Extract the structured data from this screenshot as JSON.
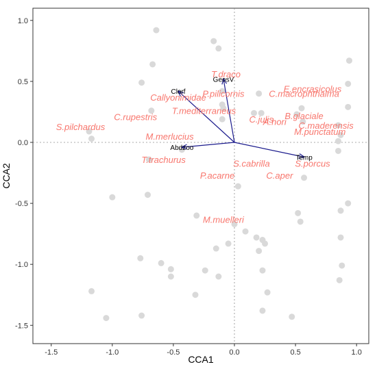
{
  "chart_data": {
    "type": "scatter",
    "title": "",
    "xlabel": "CCA1",
    "ylabel": "CCA2",
    "xlim": [
      -1.65,
      1.1
    ],
    "ylim": [
      -1.65,
      1.1
    ],
    "x_ticks": [
      -1.5,
      -1.0,
      -0.5,
      0.0,
      0.5,
      1.0
    ],
    "y_ticks": [
      -1.5,
      -1.0,
      -0.5,
      0.0,
      0.5,
      1.0
    ],
    "x_tick_labels": [
      "-1.5",
      "-1.0",
      "-0.5",
      "0.0",
      "0.5",
      "1.0"
    ],
    "y_tick_labels": [
      "-1.5",
      "-1.0",
      "-0.5",
      "0.0",
      "0.5",
      "1.0"
    ],
    "grid": false,
    "zero_lines": true,
    "colors": {
      "site_points": "#d9d9d9",
      "species_labels": "#f8766d",
      "vectors": "#1a1a8c",
      "zero_lines": "#8c8c8c"
    },
    "sites": [
      {
        "x": -0.64,
        "y": 0.92
      },
      {
        "x": -0.17,
        "y": 0.83
      },
      {
        "x": -0.13,
        "y": 0.77
      },
      {
        "x": -0.67,
        "y": 0.64
      },
      {
        "x": 0.94,
        "y": 0.67
      },
      {
        "x": -0.76,
        "y": 0.49
      },
      {
        "x": 0.93,
        "y": 0.48
      },
      {
        "x": -0.1,
        "y": 0.42
      },
      {
        "x": 0.2,
        "y": 0.4
      },
      {
        "x": -0.68,
        "y": 0.26
      },
      {
        "x": -0.1,
        "y": 0.31
      },
      {
        "x": -0.09,
        "y": 0.28
      },
      {
        "x": 0.16,
        "y": 0.24
      },
      {
        "x": 0.22,
        "y": 0.24
      },
      {
        "x": 0.55,
        "y": 0.28
      },
      {
        "x": 0.93,
        "y": 0.29
      },
      {
        "x": 0.51,
        "y": 0.23
      },
      {
        "x": -0.1,
        "y": 0.19
      },
      {
        "x": -1.19,
        "y": 0.09
      },
      {
        "x": 0.56,
        "y": 0.17
      },
      {
        "x": 0.85,
        "y": 0.14
      },
      {
        "x": -1.17,
        "y": 0.03
      },
      {
        "x": 0.87,
        "y": 0.06
      },
      {
        "x": 0.85,
        "y": 0.01
      },
      {
        "x": -0.7,
        "y": -0.14
      },
      {
        "x": -0.43,
        "y": -0.06
      },
      {
        "x": 0.85,
        "y": -0.07
      },
      {
        "x": 0.57,
        "y": -0.29
      },
      {
        "x": 0.03,
        "y": -0.36
      },
      {
        "x": -0.71,
        "y": -0.43
      },
      {
        "x": -1.0,
        "y": -0.45
      },
      {
        "x": 0.93,
        "y": -0.5
      },
      {
        "x": 0.52,
        "y": -0.58
      },
      {
        "x": 0.87,
        "y": -0.56
      },
      {
        "x": -0.31,
        "y": -0.6
      },
      {
        "x": 0.0,
        "y": -0.67
      },
      {
        "x": 0.54,
        "y": -0.65
      },
      {
        "x": 0.09,
        "y": -0.73
      },
      {
        "x": 0.18,
        "y": -0.78
      },
      {
        "x": 0.23,
        "y": -0.8
      },
      {
        "x": 0.25,
        "y": -0.83
      },
      {
        "x": -0.05,
        "y": -0.83
      },
      {
        "x": 0.87,
        "y": -0.78
      },
      {
        "x": 0.2,
        "y": -0.89
      },
      {
        "x": -0.15,
        "y": -0.87
      },
      {
        "x": -0.77,
        "y": -0.95
      },
      {
        "x": -0.6,
        "y": -0.99
      },
      {
        "x": -0.52,
        "y": -1.04
      },
      {
        "x": -0.52,
        "y": -1.1
      },
      {
        "x": -0.24,
        "y": -1.05
      },
      {
        "x": -0.13,
        "y": -1.1
      },
      {
        "x": 0.23,
        "y": -1.05
      },
      {
        "x": 0.88,
        "y": -1.01
      },
      {
        "x": -1.17,
        "y": -1.22
      },
      {
        "x": -0.32,
        "y": -1.25
      },
      {
        "x": 0.27,
        "y": -1.23
      },
      {
        "x": 0.86,
        "y": -1.13
      },
      {
        "x": -1.05,
        "y": -1.44
      },
      {
        "x": -0.76,
        "y": -1.42
      },
      {
        "x": 0.23,
        "y": -1.38
      },
      {
        "x": 0.47,
        "y": -1.43
      }
    ],
    "species": [
      {
        "label": "E.encrasicolus",
        "x": 0.64,
        "y": 0.44
      },
      {
        "label": "T.draco",
        "x": -0.07,
        "y": 0.56
      },
      {
        "label": "C.macrophthalma",
        "x": 0.57,
        "y": 0.4
      },
      {
        "label": "P.pilicornis",
        "x": -0.09,
        "y": 0.4
      },
      {
        "label": "Callyonimidae",
        "x": -0.46,
        "y": 0.37
      },
      {
        "label": "B.glaciale",
        "x": 0.57,
        "y": 0.22
      },
      {
        "label": "T.mediterraneus",
        "x": -0.25,
        "y": 0.26
      },
      {
        "label": "C.rupestris",
        "x": -0.81,
        "y": 0.21
      },
      {
        "label": "C.julis",
        "x": 0.22,
        "y": 0.19
      },
      {
        "label": "A.hori",
        "x": 0.33,
        "y": 0.17
      },
      {
        "label": "C.maderensis",
        "x": 0.75,
        "y": 0.14
      },
      {
        "label": "S.pilchardus",
        "x": -1.26,
        "y": 0.13
      },
      {
        "label": "M.punctatum",
        "x": 0.7,
        "y": 0.09
      },
      {
        "label": "M.merlucius",
        "x": -0.53,
        "y": 0.05
      },
      {
        "label": "T.trachurus",
        "x": -0.58,
        "y": -0.14
      },
      {
        "label": "S.cabrilla",
        "x": 0.14,
        "y": -0.17
      },
      {
        "label": "S.porcus",
        "x": 0.64,
        "y": -0.17
      },
      {
        "label": "P.acarne",
        "x": -0.14,
        "y": -0.27
      },
      {
        "label": "C.aper",
        "x": 0.37,
        "y": -0.27
      },
      {
        "label": "M.muelleri",
        "x": -0.09,
        "y": -0.63
      }
    ],
    "env_vectors": [
      {
        "label": "Clorf",
        "x": -0.46,
        "y": 0.42
      },
      {
        "label": "GeosV",
        "x": -0.09,
        "y": 0.52
      },
      {
        "label": "Abdzoo",
        "x": -0.43,
        "y": -0.04
      },
      {
        "label": "Temp",
        "x": 0.57,
        "y": -0.12
      }
    ]
  }
}
